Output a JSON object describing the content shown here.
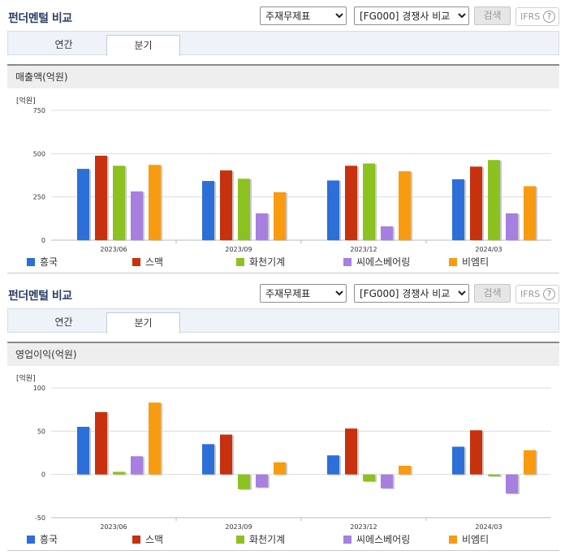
{
  "panels": [
    {
      "title": "펀더멘털 비교",
      "select_statement": "주재무제표",
      "select_compare": "[FG000] 경쟁사 비교",
      "search_label": "검색",
      "ifrs_label": "IFRS",
      "help_label": "?",
      "tabs": [
        "연간",
        "분기"
      ],
      "section_title": "매출액(억원)",
      "unit_label": "[억원]"
    },
    {
      "title": "펀더멘털 비교",
      "select_statement": "주재무제표",
      "select_compare": "[FG000] 경쟁사 비교",
      "search_label": "검색",
      "ifrs_label": "IFRS",
      "help_label": "?",
      "tabs": [
        "연간",
        "분기"
      ],
      "section_title": "영업이익(억원)",
      "unit_label": "[억원]"
    }
  ],
  "chart_data": [
    {
      "type": "bar",
      "title": "매출액(억원)",
      "ylabel": "[억원]",
      "ylim": [
        0,
        750
      ],
      "yticks": [
        0,
        250,
        500,
        750
      ],
      "categories": [
        "2023/06",
        "2023/09",
        "2023/12",
        "2024/03"
      ],
      "series": [
        {
          "name": "흥국",
          "color": "#2c6fd9",
          "values": [
            412,
            342,
            345,
            352
          ]
        },
        {
          "name": "스맥",
          "color": "#c8310e",
          "values": [
            488,
            403,
            430,
            425
          ]
        },
        {
          "name": "화천기계",
          "color": "#8cc21f",
          "values": [
            430,
            355,
            443,
            463
          ]
        },
        {
          "name": "씨에스베어링",
          "color": "#a67fe0",
          "values": [
            282,
            155,
            80,
            155
          ]
        },
        {
          "name": "비엠티",
          "color": "#f99b10",
          "values": [
            435,
            277,
            398,
            312
          ]
        }
      ],
      "grid": true,
      "legend": "bottom"
    },
    {
      "type": "bar",
      "title": "영업이익(억원)",
      "ylabel": "[억원]",
      "ylim": [
        -50,
        100
      ],
      "yticks": [
        -50,
        0,
        50,
        100
      ],
      "categories": [
        "2023/06",
        "2023/09",
        "2023/12",
        "2024/03"
      ],
      "series": [
        {
          "name": "흥국",
          "color": "#2c6fd9",
          "values": [
            55,
            35,
            22,
            32
          ]
        },
        {
          "name": "스맥",
          "color": "#c8310e",
          "values": [
            72,
            46,
            53,
            51
          ]
        },
        {
          "name": "화천기계",
          "color": "#8cc21f",
          "values": [
            3,
            -17,
            -8,
            -2
          ]
        },
        {
          "name": "씨에스베어링",
          "color": "#a67fe0",
          "values": [
            21,
            -15,
            -16,
            -22
          ]
        },
        {
          "name": "비엠티",
          "color": "#f99b10",
          "values": [
            83,
            14,
            10,
            28
          ]
        }
      ],
      "grid": true,
      "legend": "bottom"
    }
  ]
}
